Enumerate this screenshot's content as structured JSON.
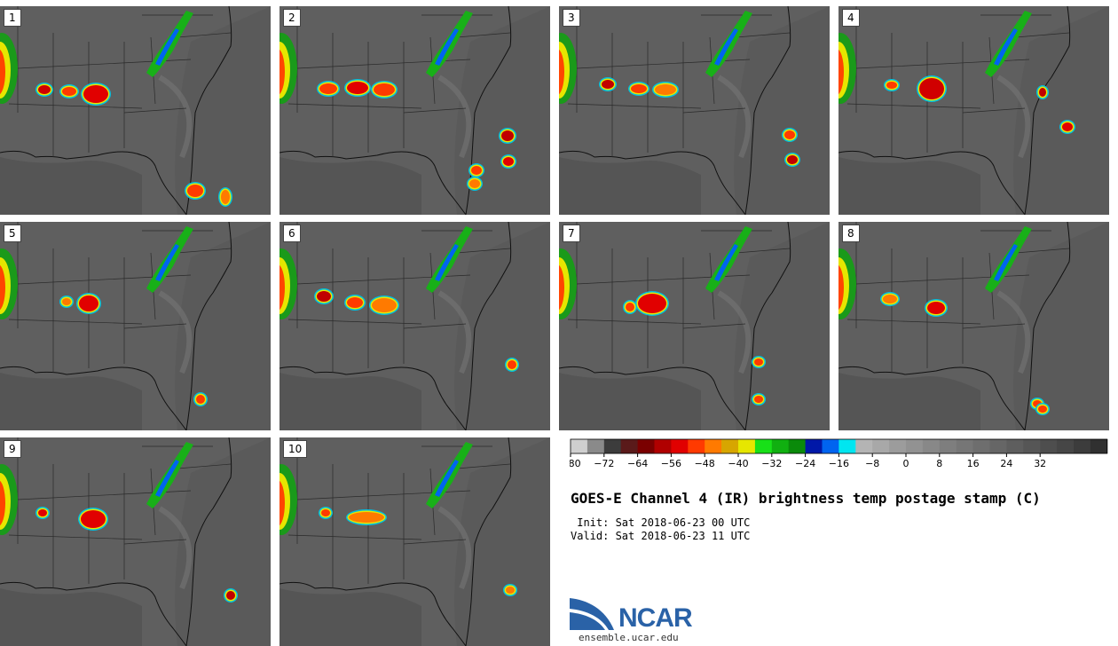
{
  "panels": [
    {
      "label": "1"
    },
    {
      "label": "2"
    },
    {
      "label": "3"
    },
    {
      "label": "4"
    },
    {
      "label": "5"
    },
    {
      "label": "6"
    },
    {
      "label": "7"
    },
    {
      "label": "8"
    },
    {
      "label": "9"
    },
    {
      "label": "10"
    }
  ],
  "colorbar": {
    "colors": [
      "#cfcfcf",
      "#8a8a8a",
      "#3c3c3c",
      "#5a1a1a",
      "#7a0000",
      "#b00000",
      "#e10000",
      "#ff3a00",
      "#ff7a00",
      "#d7a600",
      "#e6e600",
      "#18e018",
      "#10b010",
      "#0a8a0a",
      "#0018a8",
      "#0064f0",
      "#00e6f0",
      "#b4b4b4",
      "#a8a8a8",
      "#9c9c9c",
      "#929292",
      "#888888",
      "#7e7e7e",
      "#767676",
      "#6e6e6e",
      "#666666",
      "#5e5e5e",
      "#565656",
      "#4e4e4e",
      "#464646",
      "#3c3c3c",
      "#303030"
    ],
    "ticks": [
      "−80",
      "−72",
      "−64",
      "−56",
      "−48",
      "−40",
      "−32",
      "−24",
      "−16",
      "−8",
      "0",
      "8",
      "16",
      "24",
      "32"
    ]
  },
  "title": "GOES-E Channel 4 (IR) brightness temp postage stamp (C)",
  "init_line": " Init: Sat 2018-06-23 00 UTC",
  "valid_line": "Valid: Sat 2018-06-23 11 UTC",
  "logo": {
    "text": "NCAR",
    "url": "ensemble.ucar.edu"
  }
}
